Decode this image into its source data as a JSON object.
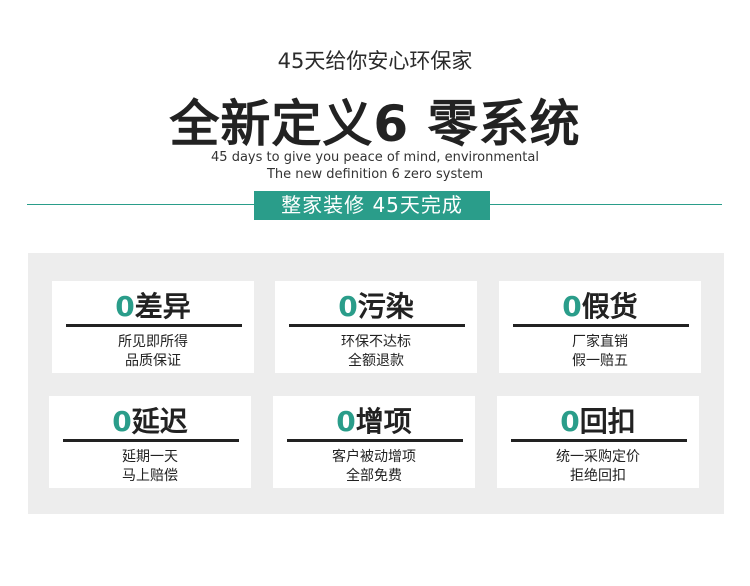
{
  "header": {
    "subtitle": "45天给你安心环保家",
    "headline": "全新定义6 零系统",
    "english_line1": "45 days to give you peace of mind, environmental",
    "english_line2": "The new definition 6 zero system",
    "banner": "整家装修  45天完成"
  },
  "colors": {
    "accent": "#2a9d8a",
    "panel": "#ededed",
    "text": "#222222"
  },
  "cards": [
    {
      "zero": "0",
      "title": "差异",
      "line1": "所见即所得",
      "line2": "品质保证"
    },
    {
      "zero": "0",
      "title": "污染",
      "line1": "环保不达标",
      "line2": "全额退款"
    },
    {
      "zero": "0",
      "title": "假货",
      "line1": "厂家直销",
      "line2": "假一赔五"
    },
    {
      "zero": "0",
      "title": "延迟",
      "line1": "延期一天",
      "line2": "马上赔偿"
    },
    {
      "zero": "0",
      "title": "增项",
      "line1": "客户被动增项",
      "line2": "全部免费"
    },
    {
      "zero": "0",
      "title": "回扣",
      "line1": "统一采购定价",
      "line2": "拒绝回扣"
    }
  ]
}
